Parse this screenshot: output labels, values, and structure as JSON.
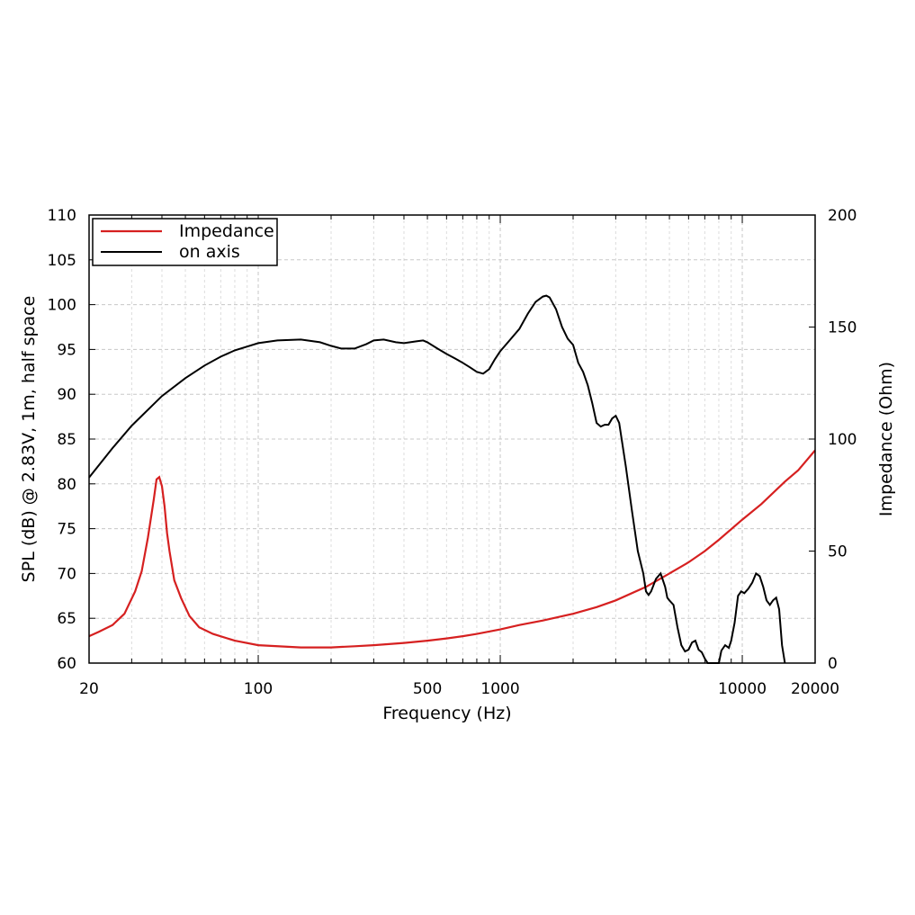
{
  "chart_data": {
    "type": "line",
    "x_scale": "log",
    "xlim": [
      20,
      20000
    ],
    "ylim_left": [
      60,
      110
    ],
    "ylim_right": [
      0,
      200
    ],
    "xlabel": "Frequency (Hz)",
    "ylabel_left": "SPL (dB) @ 2.83V, 1m, half space",
    "ylabel_right": "Impedance (Ohm)",
    "x_ticks": [
      20,
      100,
      500,
      1000,
      10000,
      20000
    ],
    "x_tick_labels": [
      "20",
      "100",
      "500",
      "1000",
      "10000",
      "20000"
    ],
    "y_left_ticks": [
      60,
      65,
      70,
      75,
      80,
      85,
      90,
      95,
      100,
      105,
      110
    ],
    "y_left_tick_labels": [
      "60",
      "65",
      "70",
      "75",
      "80",
      "85",
      "90",
      "95",
      "100",
      "105",
      "110"
    ],
    "y_right_ticks": [
      0,
      50,
      100,
      150,
      200
    ],
    "y_right_tick_labels": [
      "0",
      "50",
      "100",
      "150",
      "200"
    ],
    "grid": true,
    "legend_position": "top-left",
    "series": [
      {
        "name": "Impedance",
        "axis": "right",
        "color": "#d62020",
        "x": [
          20,
          22,
          25,
          28,
          31,
          33,
          35,
          37,
          38,
          39,
          40,
          41,
          42,
          43,
          45,
          48,
          52,
          57,
          65,
          80,
          100,
          150,
          200,
          250,
          300,
          400,
          500,
          600,
          700,
          800,
          1000,
          1200,
          1500,
          2000,
          2500,
          3000,
          4000,
          5000,
          6000,
          7000,
          8000,
          10000,
          12000,
          15000,
          17000,
          20000
        ],
        "values": [
          12,
          14,
          17,
          22,
          32,
          41,
          56,
          73,
          82,
          83,
          79,
          70,
          58,
          50,
          37,
          29,
          21,
          16,
          13,
          10,
          8,
          7,
          7,
          7.5,
          8,
          9,
          10,
          11,
          12,
          13,
          15,
          17,
          19,
          22,
          25,
          28,
          34,
          40,
          45,
          50,
          55,
          64,
          71,
          81,
          86,
          95
        ]
      },
      {
        "name": "on axis",
        "axis": "left",
        "color": "#000000",
        "x": [
          20,
          25,
          30,
          40,
          50,
          60,
          70,
          80,
          100,
          120,
          150,
          180,
          200,
          220,
          250,
          280,
          300,
          330,
          370,
          400,
          450,
          480,
          500,
          550,
          600,
          650,
          700,
          750,
          800,
          850,
          900,
          950,
          1000,
          1100,
          1200,
          1300,
          1400,
          1500,
          1550,
          1600,
          1700,
          1800,
          1900,
          2000,
          2100,
          2200,
          2300,
          2400,
          2500,
          2600,
          2700,
          2800,
          2900,
          3000,
          3100,
          3300,
          3500,
          3700,
          3900,
          4000,
          4100,
          4200,
          4400,
          4600,
          4800,
          4900,
          5000,
          5200,
          5400,
          5600,
          5800,
          6000,
          6200,
          6400,
          6600,
          6800,
          7000,
          7200,
          7500,
          7800,
          8000,
          8200,
          8500,
          8800,
          9000,
          9300,
          9600,
          9900,
          10200,
          10600,
          11000,
          11400,
          11800,
          12200,
          12600,
          13000,
          13400,
          13800,
          14200,
          14600,
          15000
        ],
        "values": [
          80.7,
          84,
          86.5,
          89.8,
          91.8,
          93.2,
          94.2,
          94.9,
          95.7,
          96,
          96.1,
          95.8,
          95.4,
          95.1,
          95.1,
          95.6,
          96,
          96.1,
          95.8,
          95.7,
          95.9,
          96,
          95.8,
          95.1,
          94.5,
          94,
          93.5,
          93,
          92.5,
          92.3,
          92.8,
          93.9,
          94.8,
          96.1,
          97.3,
          99,
          100.3,
          100.9,
          101,
          100.8,
          99.5,
          97.5,
          96.2,
          95.5,
          93.5,
          92.5,
          91,
          89,
          86.8,
          86.4,
          86.6,
          86.6,
          87.3,
          87.6,
          86.8,
          82,
          77,
          72.5,
          70,
          68,
          67.6,
          68,
          69.4,
          70,
          68.5,
          67.3,
          67,
          66.5,
          64,
          62,
          61.3,
          61.5,
          62.3,
          62.5,
          61.5,
          61.2,
          60.5,
          60,
          59.5,
          58.8,
          60,
          61.4,
          62,
          61.7,
          62.5,
          64.5,
          67.5,
          68,
          67.8,
          68.3,
          69,
          70,
          69.7,
          68.5,
          67,
          66.5,
          67,
          67.3,
          66,
          62,
          59
        ]
      }
    ]
  }
}
